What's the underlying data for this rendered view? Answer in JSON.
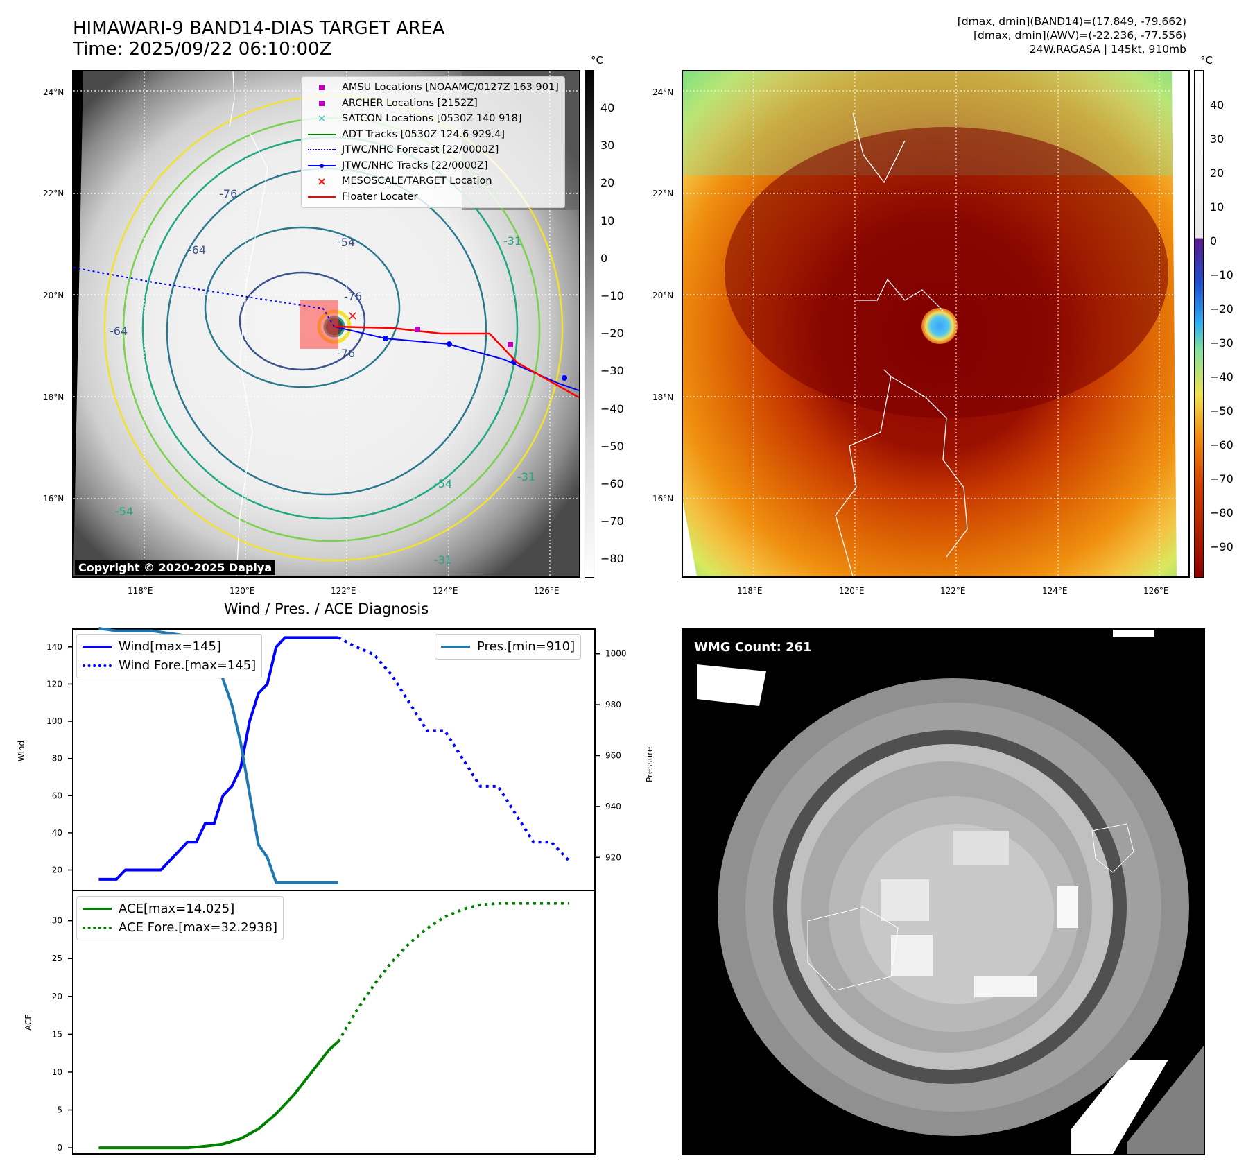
{
  "header": {
    "title_line1": "HIMAWARI-9 BAND14-DIAS TARGET AREA",
    "title_line2": "Time: 2025/09/22 06:10:00Z",
    "right_line1": "[dmax, dmin](BAND14)=(17.849, -79.662)",
    "right_line2": "[dmax, dmin](AWV)=(-22.236, -77.556)",
    "right_line3": "24W.RAGASA | 145kt, 910mb"
  },
  "maps": {
    "lat_labels": [
      "24°N",
      "22°N",
      "20°N",
      "18°N",
      "16°N"
    ],
    "lon_labels": [
      "118°E",
      "120°E",
      "122°E",
      "124°E",
      "126°E"
    ],
    "copyright": "Copyright © 2020-2025 Dapiya",
    "contour_labels": [
      "-76",
      "-64",
      "-54",
      "-31",
      "-64",
      "-76",
      "-76",
      "-54",
      "-31",
      "-54",
      "-31"
    ]
  },
  "colorbar_left": {
    "unit": "°C",
    "ticks": [
      "40",
      "30",
      "20",
      "10",
      "0",
      "−10",
      "−20",
      "−30",
      "−40",
      "−50",
      "−60",
      "−70",
      "−80"
    ]
  },
  "colorbar_right": {
    "unit": "°C",
    "ticks": [
      "40",
      "30",
      "20",
      "10",
      "0",
      "−10",
      "−20",
      "−30",
      "−40",
      "−50",
      "−60",
      "−70",
      "−80",
      "−90"
    ]
  },
  "map_legend": {
    "items": [
      {
        "label": "AMSU Locations [NOAAMC/0127Z 163 901]",
        "symbol": "square",
        "color": "#c000c0"
      },
      {
        "label": "ARCHER Locations [2152Z]",
        "symbol": "square",
        "color": "#c000c0"
      },
      {
        "label": "SATCON Locations [0530Z 140 918]",
        "symbol": "x",
        "color": "#20c0c0"
      },
      {
        "label": "ADT Tracks [0530Z 124.6 929.4]",
        "symbol": "line",
        "color": "#008000"
      },
      {
        "label": "JTWC/NHC Forecast [22/0000Z]",
        "symbol": "dotted",
        "color": "#0000ff"
      },
      {
        "label": "JTWC/NHC Tracks [22/0000Z]",
        "symbol": "line-dot",
        "color": "#0000ff"
      },
      {
        "label": "MESOSCALE/TARGET Location",
        "symbol": "x",
        "color": "#ff0000"
      },
      {
        "label": "Floater Locater",
        "symbol": "line",
        "color": "#ff0000"
      }
    ]
  },
  "diagnosis": {
    "title": "Wind / Pres. / ACE Diagnosis",
    "wind_ylabel": "Wind",
    "pres_ylabel": "Pressure",
    "ace_ylabel": "ACE",
    "wind_legend": [
      "Wind[max=145]",
      "Wind Fore.[max=145]"
    ],
    "pres_legend": "Pres.[min=910]",
    "ace_legend": [
      "ACE[max=14.025]",
      "ACE Fore.[max=32.2938]"
    ],
    "wmg_label": "WMG Count: 261"
  },
  "chart_data": [
    {
      "type": "line",
      "name": "wind",
      "x": [
        0,
        1,
        2,
        3,
        4,
        5,
        6,
        7,
        8,
        9,
        10,
        11,
        12,
        13,
        14,
        15,
        16,
        17,
        18,
        19,
        20,
        21,
        22,
        23,
        24,
        25,
        26,
        27,
        28,
        29,
        30,
        31,
        32,
        33,
        34,
        35,
        36,
        37,
        38,
        39,
        40,
        41,
        42,
        43,
        44,
        45,
        46,
        47,
        48,
        49,
        50,
        51,
        52,
        53
      ],
      "series": [
        {
          "name": "Wind[max=145]",
          "style": "solid",
          "color": "#0000ff",
          "x": [
            0,
            2,
            3,
            4,
            5,
            6,
            7,
            8,
            9,
            10,
            11,
            12,
            13,
            14,
            15,
            16,
            17,
            18,
            19,
            20,
            21,
            22,
            23,
            24,
            25,
            26,
            27
          ],
          "values": [
            15,
            15,
            20,
            20,
            20,
            20,
            20,
            25,
            30,
            35,
            35,
            45,
            45,
            60,
            65,
            75,
            100,
            115,
            120,
            140,
            145,
            145,
            145,
            145,
            145,
            145,
            145
          ]
        },
        {
          "name": "Wind Fore.[max=145]",
          "style": "dotted",
          "color": "#0000ff",
          "x": [
            27,
            29,
            31,
            33,
            35,
            37,
            39,
            41,
            43,
            45,
            47,
            49,
            51,
            53
          ],
          "values": [
            145,
            140,
            136,
            125,
            110,
            95,
            95,
            80,
            65,
            65,
            50,
            35,
            35,
            25
          ]
        }
      ],
      "yticks": [
        20,
        40,
        60,
        80,
        100,
        120,
        140
      ],
      "ylim": [
        9,
        150
      ]
    },
    {
      "type": "line",
      "name": "pressure",
      "series": [
        {
          "name": "Pres.[min=910]",
          "style": "solid",
          "color": "#1f77b4",
          "x": [
            0,
            2,
            4,
            6,
            8,
            10,
            12,
            13,
            14,
            15,
            16,
            17,
            18,
            19,
            20,
            21,
            22,
            23,
            24,
            25,
            26,
            27
          ],
          "values": [
            1010,
            1009,
            1009,
            1009,
            1008,
            1007,
            1003,
            1000,
            990,
            980,
            965,
            945,
            925,
            920,
            910,
            910,
            910,
            910,
            910,
            910,
            910,
            910
          ]
        }
      ],
      "yticks": [
        920,
        940,
        960,
        980,
        1000
      ],
      "ylim": [
        907,
        1010
      ]
    },
    {
      "type": "line",
      "name": "ace",
      "series": [
        {
          "name": "ACE[max=14.025]",
          "style": "solid",
          "color": "#008000",
          "x": [
            0,
            2,
            4,
            6,
            8,
            10,
            12,
            14,
            16,
            18,
            20,
            22,
            24,
            26,
            27
          ],
          "values": [
            0,
            0,
            0,
            0,
            0,
            0,
            0.2,
            0.5,
            1.2,
            2.5,
            4.5,
            7,
            10,
            13,
            14.025
          ]
        },
        {
          "name": "ACE Fore.[max=32.2938]",
          "style": "dotted",
          "color": "#008000",
          "x": [
            27,
            29,
            31,
            33,
            35,
            37,
            39,
            41,
            43,
            45,
            47,
            49,
            51,
            53
          ],
          "values": [
            14.025,
            18,
            21.5,
            24.5,
            27,
            29,
            30.5,
            31.5,
            32.1,
            32.29,
            32.29,
            32.29,
            32.29,
            32.29
          ]
        }
      ],
      "yticks": [
        0,
        5,
        10,
        15,
        20,
        25,
        30
      ],
      "ylim": [
        -1,
        34
      ]
    }
  ]
}
